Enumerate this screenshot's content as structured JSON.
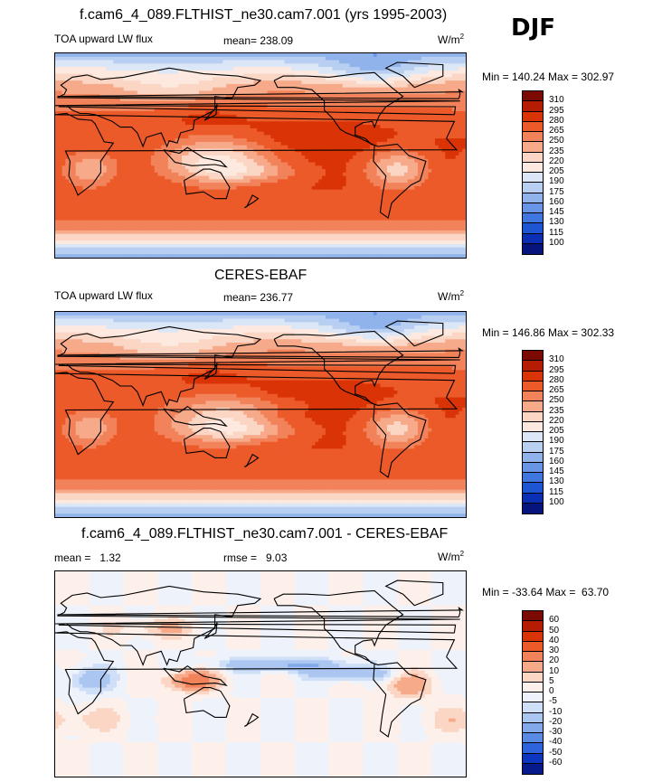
{
  "season": "DJF",
  "unit_base": "W/m",
  "unit_exp": "2",
  "panels": [
    {
      "title": "f.cam6_4_089.FLTHIST_ne30.cam7.001 (yrs 1995-2003)",
      "left_label": "TOA upward LW flux",
      "center_label": "mean= 238.09",
      "minmax": "Min = 140.24 Max = 302.97",
      "levels": [
        "310",
        "295",
        "280",
        "265",
        "250",
        "235",
        "220",
        "205",
        "190",
        "175",
        "160",
        "145",
        "130",
        "115",
        "100"
      ],
      "field": "model"
    },
    {
      "title": "CERES-EBAF",
      "left_label": "TOA upward LW flux",
      "center_label": "mean= 236.77",
      "minmax": "Min = 146.86 Max = 302.33",
      "levels": [
        "310",
        "295",
        "280",
        "265",
        "250",
        "235",
        "220",
        "205",
        "190",
        "175",
        "160",
        "145",
        "130",
        "115",
        "100"
      ],
      "field": "obs"
    },
    {
      "title": "f.cam6_4_089.FLTHIST_ne30.cam7.001 - CERES-EBAF",
      "left_label": "mean =   1.32",
      "center_label": "rmse =   9.03",
      "minmax": "Min = -33.64 Max =  63.70",
      "levels": [
        "60",
        "50",
        "40",
        "30",
        "20",
        "10",
        "5",
        "0",
        "-5",
        "-10",
        "-20",
        "-30",
        "-40",
        "-50",
        "-60"
      ],
      "field": "diff"
    }
  ],
  "colors": {
    "abs_scale": [
      "#7a0a02",
      "#b41d03",
      "#d93306",
      "#ec5a2a",
      "#f2825a",
      "#f6aa8a",
      "#fbd6c4",
      "#fde9df",
      "#dbe7f7",
      "#b9cff2",
      "#90b3ec",
      "#6995e6",
      "#4076e0",
      "#1d55d3",
      "#0a2fb4",
      "#06157e"
    ],
    "diff_scale": [
      "#7a0a02",
      "#b41d03",
      "#d93306",
      "#ec5a2a",
      "#f2825a",
      "#f6aa8a",
      "#fbd6c4",
      "#fdf0ea",
      "#eef3fb",
      "#cfdff7",
      "#aac6f1",
      "#82a9ea",
      "#5a8be4",
      "#2f63dc",
      "#0c36bf",
      "#071a8c"
    ]
  }
}
